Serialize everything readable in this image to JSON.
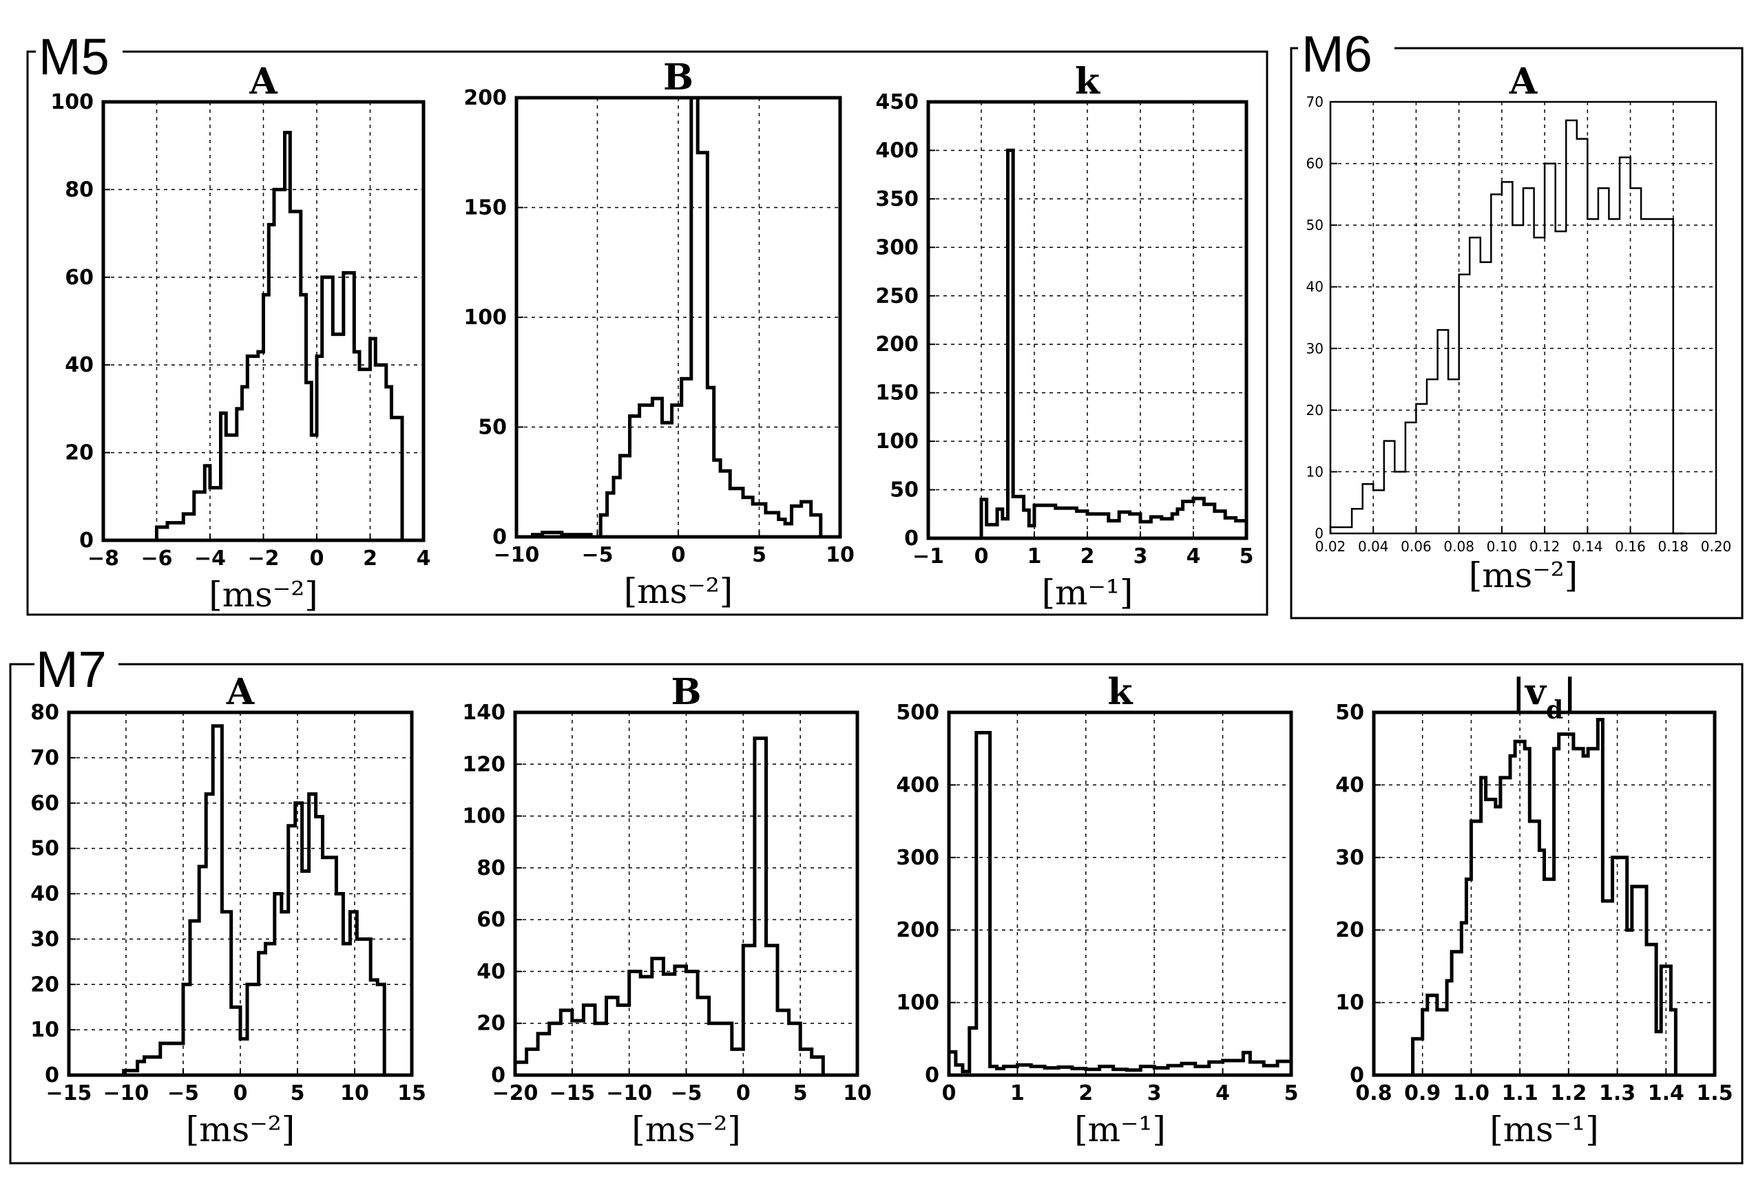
{
  "groups": [
    {
      "label": "M5"
    },
    {
      "label": "M6"
    },
    {
      "label": "M7"
    }
  ],
  "chart_data": [
    {
      "type": "histogram",
      "group": "M5",
      "title": "A",
      "xlabel": "[ms⁻²]",
      "ylabel": "",
      "xlim": [
        -8,
        4
      ],
      "ylim": [
        0,
        100
      ],
      "grid": true,
      "xticks": [
        -8,
        -6,
        -4,
        -2,
        0,
        2,
        4
      ],
      "yticks": [
        0,
        20,
        40,
        60,
        80,
        100
      ],
      "series": [
        {
          "x": [
            -6.2,
            -6.0,
            -5.6,
            -5.0,
            -4.6,
            -4.2,
            -4.0,
            -3.6,
            -3.4,
            -3.0,
            -2.8,
            -2.6,
            -2.2,
            -2.0,
            -1.8,
            -1.6,
            -1.2,
            -1.0,
            -0.6,
            -0.4,
            -0.2,
            0.0,
            0.2,
            0.6,
            1.0,
            1.4,
            1.6,
            2.0,
            2.2,
            2.6,
            2.8,
            3.2,
            3.4
          ],
          "y": [
            0,
            3,
            4,
            6,
            11,
            17,
            12,
            29,
            24,
            30,
            35,
            42,
            43,
            56,
            72,
            80,
            93,
            75,
            56,
            36,
            24,
            42,
            60,
            47,
            61,
            43,
            39,
            46,
            40,
            35,
            28,
            0,
            0
          ]
        }
      ]
    },
    {
      "type": "histogram",
      "group": "M5",
      "title": "B",
      "xlabel": "[ms⁻²]",
      "ylabel": "",
      "xlim": [
        -10,
        10
      ],
      "ylim": [
        0,
        200
      ],
      "grid": true,
      "xticks": [
        -10,
        -5,
        0,
        5,
        10
      ],
      "yticks": [
        0,
        50,
        100,
        150,
        200
      ],
      "series": [
        {
          "x": [
            -9.0,
            -8.4,
            -7.2,
            -5.4,
            -4.8,
            -4.4,
            -4.0,
            -3.6,
            -3.0,
            -2.4,
            -1.6,
            -1.0,
            -0.4,
            0.2,
            0.8,
            1.2,
            1.8,
            2.2,
            2.6,
            3.2,
            4.0,
            4.6,
            5.4,
            6.2,
            6.6,
            7.0,
            7.6,
            8.2
          ],
          "y": [
            1,
            2,
            1,
            0,
            10,
            20,
            27,
            37,
            55,
            60,
            63,
            52,
            60,
            72,
            200,
            175,
            68,
            35,
            30,
            22,
            18,
            15,
            11,
            8,
            6,
            14,
            16,
            10
          ]
        }
      ]
    },
    {
      "type": "histogram",
      "group": "M5",
      "title": "k",
      "xlabel": "[m⁻¹]",
      "ylabel": "",
      "xlim": [
        -1,
        5
      ],
      "ylim": [
        0,
        450
      ],
      "grid": true,
      "xticks": [
        -1,
        0,
        1,
        2,
        3,
        4,
        5
      ],
      "yticks": [
        0,
        50,
        100,
        150,
        200,
        250,
        300,
        350,
        400,
        450
      ],
      "series": [
        {
          "x": [
            -0.1,
            0.0,
            0.1,
            0.3,
            0.4,
            0.5,
            0.6,
            0.8,
            0.9,
            1.0,
            1.4,
            1.8,
            2.0,
            2.4,
            2.6,
            2.8,
            3.0,
            3.2,
            3.4,
            3.6,
            3.7,
            3.8,
            4.0,
            4.2,
            4.4,
            4.6,
            4.8,
            5.0
          ],
          "y": [
            0,
            40,
            14,
            30,
            20,
            400,
            43,
            29,
            13,
            34,
            31,
            28,
            25,
            18,
            27,
            25,
            17,
            22,
            20,
            25,
            30,
            38,
            41,
            35,
            28,
            21,
            18,
            16
          ]
        }
      ]
    },
    {
      "type": "histogram",
      "group": "M6",
      "title": "A",
      "xlabel": "[ms⁻²]",
      "ylabel": "",
      "xlim": [
        0.02,
        0.2
      ],
      "ylim": [
        0,
        70
      ],
      "grid": true,
      "xticks": [
        0.02,
        0.04,
        0.06,
        0.08,
        0.1,
        0.12,
        0.14,
        0.16,
        0.18,
        0.2
      ],
      "yticks": [
        0,
        10,
        20,
        30,
        40,
        50,
        60,
        70
      ],
      "series": [
        {
          "x": [
            0.02,
            0.03,
            0.035,
            0.04,
            0.045,
            0.05,
            0.055,
            0.06,
            0.065,
            0.07,
            0.075,
            0.08,
            0.085,
            0.09,
            0.095,
            0.1,
            0.105,
            0.11,
            0.115,
            0.12,
            0.125,
            0.13,
            0.135,
            0.14,
            0.145,
            0.15,
            0.155,
            0.16,
            0.165,
            0.17,
            0.175,
            0.18
          ],
          "y": [
            1,
            4,
            8,
            7,
            15,
            10,
            18,
            21,
            25,
            33,
            25,
            42,
            48,
            44,
            55,
            57,
            50,
            56,
            48,
            60,
            49,
            67,
            64,
            51,
            56,
            51,
            61,
            56,
            51,
            51,
            51,
            0
          ]
        }
      ]
    },
    {
      "type": "histogram",
      "group": "M7",
      "title": "A",
      "xlabel": "[ms⁻²]",
      "ylabel": "",
      "xlim": [
        -15,
        15
      ],
      "ylim": [
        0,
        80
      ],
      "grid": true,
      "xticks": [
        -15,
        -10,
        -5,
        0,
        5,
        10,
        15
      ],
      "yticks": [
        0,
        10,
        20,
        30,
        40,
        50,
        60,
        70,
        80
      ],
      "series": [
        {
          "x": [
            -10.2,
            -9.0,
            -8.4,
            -7.0,
            -5.0,
            -4.4,
            -3.6,
            -3.0,
            -2.4,
            -1.6,
            -0.8,
            0.0,
            0.6,
            1.6,
            2.2,
            3.0,
            3.6,
            4.2,
            4.8,
            5.4,
            6.0,
            6.6,
            7.2,
            8.4,
            9.0,
            9.6,
            10.2,
            11.4,
            12.0,
            12.6
          ],
          "y": [
            1,
            3,
            4,
            7,
            20,
            34,
            46,
            62,
            77,
            36,
            15,
            8,
            20,
            27,
            29,
            40,
            36,
            55,
            60,
            45,
            62,
            57,
            48,
            40,
            29,
            36,
            30,
            21,
            20,
            0
          ]
        }
      ]
    },
    {
      "type": "histogram",
      "group": "M7",
      "title": "B",
      "xlabel": "[ms⁻²]",
      "ylabel": "",
      "xlim": [
        -20,
        10
      ],
      "ylim": [
        0,
        140
      ],
      "grid": true,
      "xticks": [
        -20,
        -15,
        -10,
        -5,
        0,
        5,
        10
      ],
      "yticks": [
        0,
        20,
        40,
        60,
        80,
        100,
        120,
        140
      ],
      "series": [
        {
          "x": [
            -20.0,
            -19.0,
            -18.0,
            -17.0,
            -16.0,
            -15.0,
            -14.0,
            -13.0,
            -12.0,
            -11.0,
            -10.0,
            -9.0,
            -8.0,
            -7.0,
            -6.0,
            -5.0,
            -4.0,
            -3.0,
            -2.0,
            -1.0,
            0.0,
            1.0,
            2.0,
            3.0,
            4.0,
            5.0,
            6.0
          ],
          "y": [
            5,
            10,
            16,
            20,
            25,
            21,
            27,
            20,
            30,
            27,
            40,
            38,
            45,
            39,
            42,
            40,
            30,
            20,
            20,
            10,
            50,
            130,
            50,
            25,
            20,
            10,
            7
          ]
        }
      ]
    },
    {
      "type": "histogram",
      "group": "M7",
      "title": "k",
      "xlabel": "[m⁻¹]",
      "ylabel": "",
      "xlim": [
        0,
        5
      ],
      "ylim": [
        0,
        500
      ],
      "grid": true,
      "xticks": [
        0,
        1,
        2,
        3,
        4,
        5
      ],
      "yticks": [
        0,
        100,
        200,
        300,
        400,
        500
      ],
      "series": [
        {
          "x": [
            0.0,
            0.1,
            0.2,
            0.3,
            0.4,
            0.5,
            0.6,
            0.7,
            0.8,
            1.0,
            1.2,
            1.4,
            1.6,
            1.8,
            2.0,
            2.2,
            2.4,
            2.6,
            2.8,
            3.0,
            3.2,
            3.4,
            3.6,
            3.8,
            4.0,
            4.2,
            4.3,
            4.4,
            4.6,
            4.8,
            5.0
          ],
          "y": [
            32,
            14,
            5,
            65,
            472,
            472,
            12,
            9,
            12,
            14,
            12,
            10,
            11,
            9,
            8,
            12,
            8,
            7,
            12,
            10,
            13,
            16,
            12,
            18,
            20,
            20,
            31,
            18,
            13,
            19,
            18
          ]
        }
      ]
    },
    {
      "type": "histogram",
      "group": "M7",
      "title": "|v_d|",
      "xlabel": "[ms⁻¹]",
      "ylabel": "",
      "xlim": [
        0.8,
        1.5
      ],
      "ylim": [
        0,
        50
      ],
      "grid": true,
      "xticks": [
        0.8,
        0.9,
        1.0,
        1.1,
        1.2,
        1.3,
        1.4,
        1.5
      ],
      "yticks": [
        0,
        10,
        20,
        30,
        40,
        50
      ],
      "series": [
        {
          "x": [
            0.88,
            0.9,
            0.91,
            0.93,
            0.95,
            0.96,
            0.98,
            0.99,
            1.0,
            1.02,
            1.03,
            1.05,
            1.06,
            1.08,
            1.09,
            1.11,
            1.12,
            1.14,
            1.15,
            1.17,
            1.18,
            1.2,
            1.21,
            1.23,
            1.24,
            1.26,
            1.27,
            1.29,
            1.3,
            1.32,
            1.33,
            1.35,
            1.36,
            1.38,
            1.39,
            1.41,
            1.42
          ],
          "y": [
            5,
            9,
            11,
            9,
            13,
            17,
            21,
            27,
            35,
            41,
            38,
            37,
            41,
            44,
            46,
            45,
            35,
            31,
            27,
            45,
            47,
            47,
            45,
            44,
            45,
            49,
            24,
            30,
            30,
            20,
            26,
            26,
            18,
            6,
            15,
            9,
            0
          ]
        }
      ]
    }
  ]
}
